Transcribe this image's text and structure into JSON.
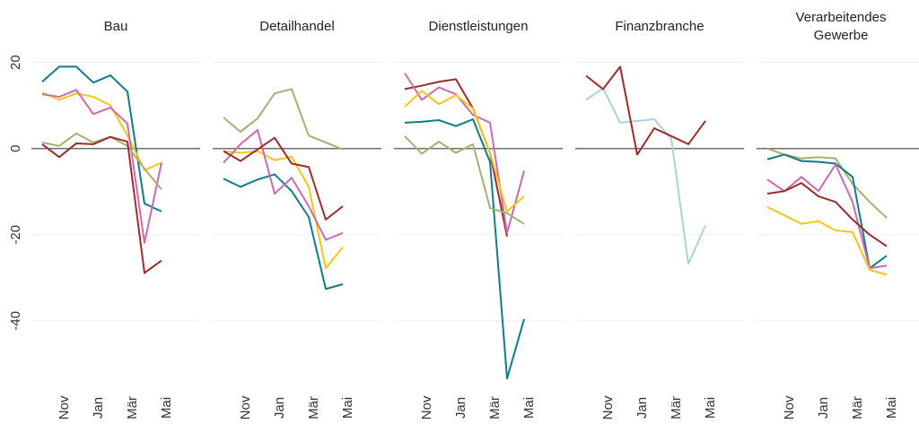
{
  "chart_data": [
    {
      "type": "line",
      "title": "Bau",
      "categories": [
        null,
        "Nov",
        null,
        "Jan",
        null,
        "Mär",
        null,
        "Mai"
      ],
      "ylim": [
        -55,
        22
      ],
      "yticks": [
        -40,
        -20,
        0,
        20
      ],
      "series": [
        {
          "color": "#0f7c8c",
          "values": [
            15.5,
            19,
            19,
            15.3,
            17,
            13.2,
            -12.8,
            -14.6
          ]
        },
        {
          "color": "#f7c518",
          "values": [
            13,
            11.3,
            12.8,
            12,
            10,
            3,
            -5,
            -3.3
          ]
        },
        {
          "color": "#c96bb0",
          "values": [
            12.6,
            12,
            13.6,
            8,
            9.5,
            5.8,
            -21.9,
            -3.3
          ]
        },
        {
          "color": "#a9ae72",
          "values": [
            1.4,
            0.6,
            3.5,
            1.4,
            2.7,
            0.6,
            -4.7,
            -9.5
          ]
        },
        {
          "color": "#9e2b2b",
          "values": [
            1,
            -2,
            1.2,
            1,
            2.7,
            1.6,
            -28.9,
            -26
          ]
        }
      ]
    },
    {
      "type": "line",
      "title": "Detailhandel",
      "categories": [
        null,
        "Nov",
        null,
        "Jan",
        null,
        "Mär",
        null,
        "Mai"
      ],
      "ylim": [
        -55,
        22
      ],
      "series": [
        {
          "color": "#a9ae72",
          "values": [
            7.2,
            3.9,
            7,
            12.8,
            13.8,
            3,
            1.4,
            -0.2
          ]
        },
        {
          "color": "#0f7c8c",
          "values": [
            -7,
            -8.9,
            -7.2,
            -6,
            -9.9,
            -15.9,
            -32.6,
            -31.5
          ]
        },
        {
          "color": "#f7c518",
          "values": [
            -0.6,
            -1,
            -0.6,
            -2.7,
            -1.9,
            -8.9,
            -27.8,
            -22.9
          ]
        },
        {
          "color": "#c96bb0",
          "values": [
            -3.3,
            1,
            4.3,
            -10.5,
            -6.8,
            -13.4,
            -21.2,
            -19.6
          ]
        },
        {
          "color": "#9e2b2b",
          "values": [
            -0.6,
            -2.9,
            -0.2,
            2.5,
            -3.5,
            -4.3,
            -16.5,
            -13.4
          ]
        }
      ]
    },
    {
      "type": "line",
      "title": "Dienstleistungen",
      "categories": [
        null,
        "Nov",
        null,
        "Jan",
        null,
        "Mär",
        null,
        "Mai"
      ],
      "ylim": [
        -55,
        22
      ],
      "series": [
        {
          "color": "#0f7c8c",
          "values": [
            6,
            6.2,
            6.6,
            5.2,
            6.8,
            -3.1,
            -53.4,
            -39.6
          ]
        },
        {
          "color": "#9e2b2b",
          "values": [
            13.8,
            14.6,
            15.5,
            16.1,
            9.3,
            -1,
            -20.4,
            null
          ]
        },
        {
          "color": "#c96bb0",
          "values": [
            17.5,
            11.3,
            14.2,
            12.6,
            7.8,
            6,
            -19.6,
            -5.2
          ]
        },
        {
          "color": "#f7c518",
          "values": [
            9.7,
            13.4,
            10.3,
            12.4,
            9.3,
            -1,
            -14.6,
            -11.1
          ]
        },
        {
          "color": "#a9ae72",
          "values": [
            2.9,
            -1.2,
            1.6,
            -1,
            1,
            -13.8,
            -15,
            -17.5
          ]
        }
      ]
    },
    {
      "type": "line",
      "title": "Finanzbranche",
      "categories": [
        null,
        "Nov",
        null,
        "Jan",
        null,
        "Mär",
        null,
        "Mai"
      ],
      "ylim": [
        -55,
        22
      ],
      "series": [
        {
          "color": "#a9d4df",
          "values": [
            11.3,
            14,
            6,
            6.4,
            6.8,
            2.3,
            -26.8,
            -17.9
          ]
        },
        {
          "color": "#9e2b2b",
          "values": [
            16.9,
            13.8,
            19,
            -1.4,
            4.7,
            2.9,
            1,
            6.4
          ]
        }
      ]
    },
    {
      "type": "line",
      "title": "Verarbeitendes Gewerbe",
      "categories": [
        null,
        "Nov",
        null,
        "Jan",
        null,
        "Mär",
        null,
        "Mai"
      ],
      "ylim": [
        -55,
        22
      ],
      "series": [
        {
          "color": "#a9ae72",
          "values": [
            0,
            -1.4,
            -2.3,
            -2,
            -2.3,
            -8.2,
            -12.4,
            -16.1
          ]
        },
        {
          "color": "#0f7c8c",
          "values": [
            -2.5,
            -1.4,
            -2.9,
            -3.1,
            -3.5,
            -6.6,
            -27.8,
            -24.9
          ]
        },
        {
          "color": "#c96bb0",
          "values": [
            -7.2,
            -9.9,
            -6.6,
            -9.9,
            -3.7,
            -12.4,
            -27.8,
            -27.2
          ]
        },
        {
          "color": "#9e2b2b",
          "values": [
            -10.5,
            -9.9,
            -8,
            -11.1,
            -12.4,
            -16.5,
            -20,
            -22.7
          ]
        },
        {
          "color": "#f7c518",
          "values": [
            -13.6,
            -15.5,
            -17.5,
            -16.9,
            -19,
            -19.4,
            -28.2,
            -29.3
          ]
        }
      ]
    }
  ]
}
